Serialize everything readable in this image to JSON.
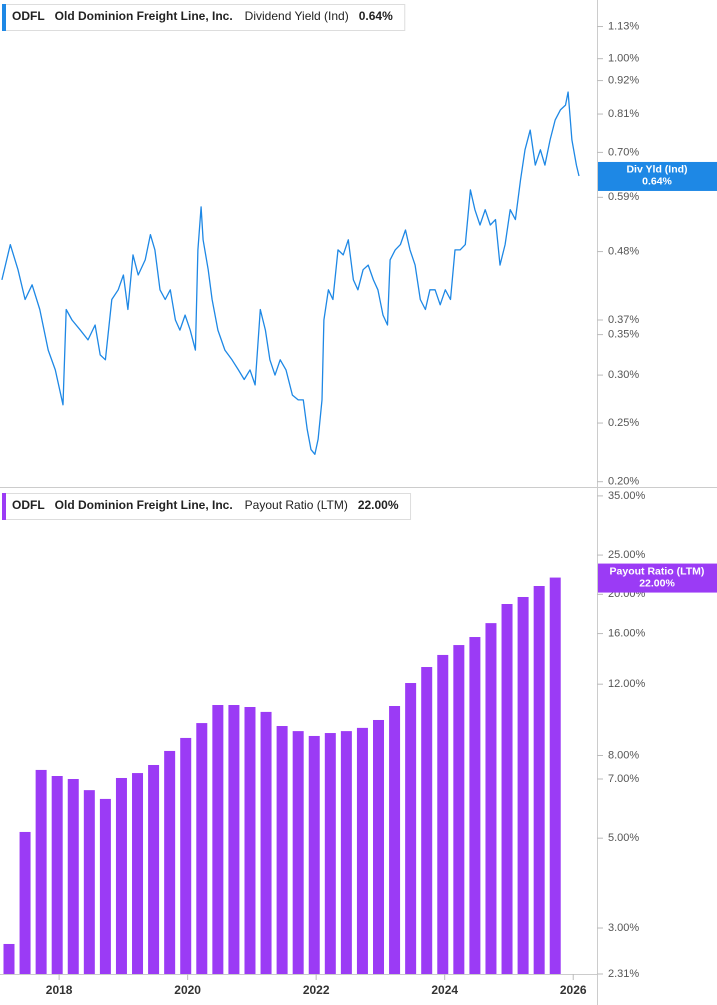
{
  "chart_data": [
    {
      "type": "line",
      "ticker": "ODFL",
      "company": "Old Dominion Freight Line, Inc.",
      "tag_label": "Div Yld (Ind)",
      "last": {
        "value": 0.64,
        "label": "0.64%"
      },
      "log_scale": true,
      "xlim": [
        2017.08,
        2026.37
      ],
      "ylim": [
        0.196,
        1.25
      ],
      "yticks": [
        {
          "value": 1.13,
          "label": "1.13%"
        },
        {
          "value": 1.0,
          "label": "1.00%"
        },
        {
          "value": 0.92,
          "label": "0.92%"
        },
        {
          "value": 0.81,
          "label": "0.81%"
        },
        {
          "value": 0.7,
          "label": "0.70%"
        },
        {
          "value": 0.59,
          "label": "0.59%"
        },
        {
          "value": 0.48,
          "label": "0.48%"
        },
        {
          "value": 0.37,
          "label": "0.37%"
        },
        {
          "value": 0.35,
          "label": "0.35%"
        },
        {
          "value": 0.3,
          "label": "0.30%"
        },
        {
          "value": 0.25,
          "label": "0.25%"
        },
        {
          "value": 0.2,
          "label": "0.20%"
        }
      ],
      "series": [
        {
          "name": "Dividend Yield (Ind)",
          "color": "#1e88e5",
          "x": [
            2017.11,
            2017.24,
            2017.36,
            2017.47,
            2017.58,
            2017.7,
            2017.83,
            2017.94,
            2018.06,
            2018.11,
            2018.2,
            2018.33,
            2018.45,
            2018.56,
            2018.64,
            2018.72,
            2018.82,
            2018.92,
            2019.0,
            2019.07,
            2019.15,
            2019.23,
            2019.34,
            2019.42,
            2019.49,
            2019.57,
            2019.65,
            2019.73,
            2019.81,
            2019.88,
            2019.96,
            2020.04,
            2020.12,
            2020.16,
            2020.21,
            2020.24,
            2020.32,
            2020.38,
            2020.47,
            2020.58,
            2020.69,
            2020.79,
            2020.88,
            2020.97,
            2021.05,
            2021.13,
            2021.21,
            2021.28,
            2021.36,
            2021.44,
            2021.53,
            2021.63,
            2021.72,
            2021.8,
            2021.86,
            2021.92,
            2021.98,
            2022.03,
            2022.09,
            2022.12,
            2022.19,
            2022.26,
            2022.34,
            2022.42,
            2022.5,
            2022.58,
            2022.65,
            2022.73,
            2022.81,
            2022.89,
            2022.96,
            2023.04,
            2023.11,
            2023.15,
            2023.23,
            2023.31,
            2023.39,
            2023.46,
            2023.54,
            2023.62,
            2023.7,
            2023.77,
            2023.85,
            2023.93,
            2024.01,
            2024.09,
            2024.16,
            2024.24,
            2024.32,
            2024.4,
            2024.47,
            2024.55,
            2024.63,
            2024.71,
            2024.79,
            2024.86,
            2024.94,
            2025.02,
            2025.1,
            2025.18,
            2025.25,
            2025.33,
            2025.41,
            2025.49,
            2025.56,
            2025.64,
            2025.72,
            2025.8,
            2025.88,
            2025.92,
            2025.98,
            2026.05,
            2026.09
          ],
          "values": [
            0.431,
            0.493,
            0.448,
            0.4,
            0.423,
            0.385,
            0.33,
            0.306,
            0.268,
            0.385,
            0.37,
            0.356,
            0.343,
            0.363,
            0.324,
            0.318,
            0.4,
            0.415,
            0.439,
            0.385,
            0.474,
            0.439,
            0.465,
            0.512,
            0.483,
            0.415,
            0.4,
            0.415,
            0.37,
            0.356,
            0.377,
            0.356,
            0.33,
            0.483,
            0.569,
            0.502,
            0.448,
            0.4,
            0.356,
            0.33,
            0.318,
            0.306,
            0.295,
            0.306,
            0.289,
            0.385,
            0.356,
            0.318,
            0.3,
            0.318,
            0.306,
            0.278,
            0.273,
            0.273,
            0.244,
            0.226,
            0.222,
            0.235,
            0.273,
            0.37,
            0.415,
            0.4,
            0.483,
            0.474,
            0.502,
            0.431,
            0.415,
            0.448,
            0.456,
            0.431,
            0.415,
            0.377,
            0.363,
            0.465,
            0.483,
            0.493,
            0.521,
            0.483,
            0.456,
            0.4,
            0.385,
            0.415,
            0.415,
            0.392,
            0.415,
            0.4,
            0.483,
            0.483,
            0.493,
            0.607,
            0.563,
            0.531,
            0.563,
            0.531,
            0.542,
            0.456,
            0.493,
            0.563,
            0.542,
            0.63,
            0.707,
            0.762,
            0.667,
            0.707,
            0.667,
            0.734,
            0.792,
            0.823,
            0.838,
            0.881,
            0.734,
            0.667,
            0.64
          ]
        }
      ]
    },
    {
      "type": "bar",
      "ticker": "ODFL",
      "company": "Old Dominion Freight Line, Inc.",
      "tag_label": "Payout Ratio (LTM)",
      "last": {
        "value": 22,
        "label": "22.00%"
      },
      "log_scale": true,
      "xlim": [
        2017.08,
        2026.37
      ],
      "xticks": [
        2018,
        2020,
        2022,
        2024,
        2026
      ],
      "ylim": [
        2.31,
        36.4
      ],
      "yticks": [
        {
          "value": 35,
          "label": "35.00%"
        },
        {
          "value": 25,
          "label": "25.00%"
        },
        {
          "value": 20,
          "label": "20.00%"
        },
        {
          "value": 16,
          "label": "16.00%"
        },
        {
          "value": 12,
          "label": "12.00%"
        },
        {
          "value": 8,
          "label": "8.00%"
        },
        {
          "value": 7,
          "label": "7.00%"
        },
        {
          "value": 5,
          "label": "5.00%"
        },
        {
          "value": 3,
          "label": "3.00%"
        },
        {
          "value": 2.31,
          "label": "2.31%"
        }
      ],
      "series": [
        {
          "name": "Payout Ratio (LTM)",
          "color": "#9b3bf5",
          "x": [
            2017.22,
            2017.47,
            2017.72,
            2017.97,
            2018.22,
            2018.47,
            2018.72,
            2018.97,
            2019.22,
            2019.47,
            2019.72,
            2019.97,
            2020.22,
            2020.47,
            2020.72,
            2020.97,
            2021.22,
            2021.47,
            2021.72,
            2021.97,
            2022.22,
            2022.47,
            2022.72,
            2022.97,
            2023.22,
            2023.47,
            2023.72,
            2023.97,
            2024.22,
            2024.47,
            2024.72,
            2024.97,
            2025.22,
            2025.47,
            2025.72
          ],
          "values": [
            2.74,
            5.18,
            7.37,
            7.12,
            7.0,
            6.57,
            6.25,
            7.04,
            7.24,
            7.58,
            8.21,
            8.84,
            9.62,
            10.66,
            10.66,
            10.54,
            10.25,
            9.46,
            9.19,
            8.94,
            9.09,
            9.19,
            9.36,
            9.79,
            10.6,
            12.08,
            13.23,
            14.17,
            14.99,
            15.69,
            16.98,
            18.93,
            19.7,
            20.97,
            22
          ]
        }
      ]
    }
  ]
}
